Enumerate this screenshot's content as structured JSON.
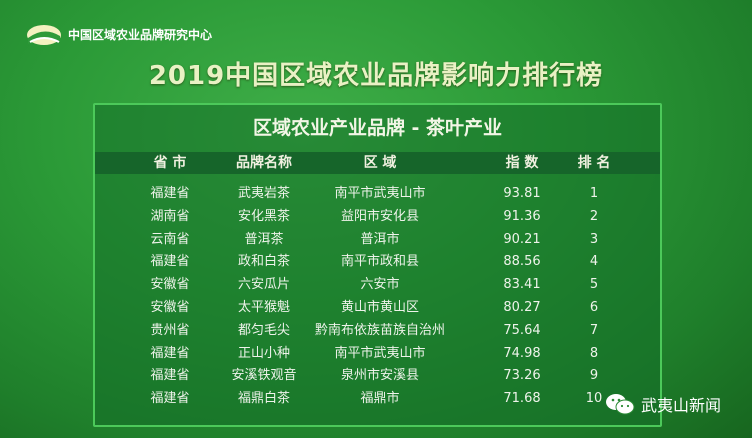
{
  "header": {
    "organization": "中国区域农业品牌研究中心",
    "title": "2019中国区域农业品牌影响力排行榜"
  },
  "table": {
    "title": "区域农业产业品牌 - 茶叶产业",
    "columns": [
      "省 市",
      "品牌名称",
      "区 域",
      "指 数",
      "排 名"
    ],
    "rows": [
      [
        "福建省",
        "武夷岩茶",
        "南平市武夷山市",
        "93.81",
        "1"
      ],
      [
        "湖南省",
        "安化黑茶",
        "益阳市安化县",
        "91.36",
        "2"
      ],
      [
        "云南省",
        "普洱茶",
        "普洱市",
        "90.21",
        "3"
      ],
      [
        "福建省",
        "政和白茶",
        "南平市政和县",
        "88.56",
        "4"
      ],
      [
        "安徽省",
        "六安瓜片",
        "六安市",
        "83.41",
        "5"
      ],
      [
        "安徽省",
        "太平猴魁",
        "黄山市黄山区",
        "80.27",
        "6"
      ],
      [
        "贵州省",
        "都匀毛尖",
        "黔南布依族苗族自治州",
        "75.64",
        "7"
      ],
      [
        "福建省",
        "正山小种",
        "南平市武夷山市",
        "74.98",
        "8"
      ],
      [
        "福建省",
        "安溪铁观音",
        "泉州市安溪县",
        "73.26",
        "9"
      ],
      [
        "福建省",
        "福鼎白茶",
        "福鼎市",
        "71.68",
        "10"
      ]
    ]
  },
  "watermark": {
    "icon": "wechat-icon",
    "text": "武夷山新闻"
  }
}
